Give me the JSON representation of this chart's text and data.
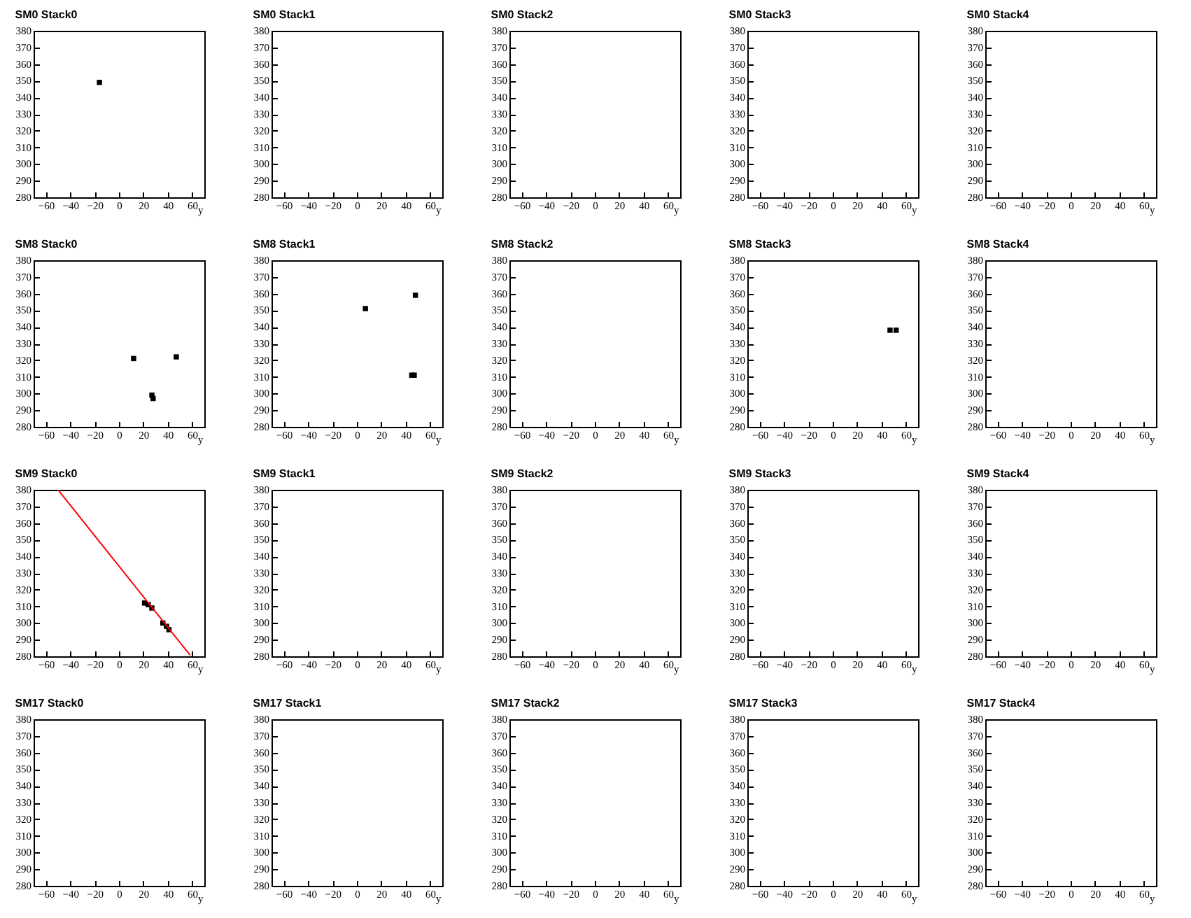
{
  "chart_data": [
    {
      "type": "scatter",
      "title": "SM0 Stack0",
      "xlabel": "y",
      "xlim": [
        -70,
        70
      ],
      "xticks": [
        -60,
        -40,
        -20,
        0,
        20,
        40,
        60
      ],
      "ylim": [
        280,
        380
      ],
      "yticks": [
        280,
        290,
        300,
        310,
        320,
        330,
        340,
        350,
        360,
        370,
        380
      ],
      "series": [
        {
          "color": "#000000",
          "marker": "square",
          "x": [
            -16
          ],
          "values": [
            349
          ]
        }
      ]
    },
    {
      "type": "scatter",
      "title": "SM0 Stack1",
      "xlabel": "y",
      "xlim": [
        -70,
        70
      ],
      "xticks": [
        -60,
        -40,
        -20,
        0,
        20,
        40,
        60
      ],
      "ylim": [
        280,
        380
      ],
      "yticks": [
        280,
        290,
        300,
        310,
        320,
        330,
        340,
        350,
        360,
        370,
        380
      ]
    },
    {
      "type": "scatter",
      "title": "SM0 Stack2",
      "xlabel": "y",
      "xlim": [
        -70,
        70
      ],
      "xticks": [
        -60,
        -40,
        -20,
        0,
        20,
        40,
        60
      ],
      "ylim": [
        280,
        380
      ],
      "yticks": [
        280,
        290,
        300,
        310,
        320,
        330,
        340,
        350,
        360,
        370,
        380
      ]
    },
    {
      "type": "scatter",
      "title": "SM0 Stack3",
      "xlabel": "y",
      "xlim": [
        -70,
        70
      ],
      "xticks": [
        -60,
        -40,
        -20,
        0,
        20,
        40,
        60
      ],
      "ylim": [
        280,
        380
      ],
      "yticks": [
        280,
        290,
        300,
        310,
        320,
        330,
        340,
        350,
        360,
        370,
        380
      ]
    },
    {
      "type": "scatter",
      "title": "SM0 Stack4",
      "xlabel": "y",
      "xlim": [
        -70,
        70
      ],
      "xticks": [
        -60,
        -40,
        -20,
        0,
        20,
        40,
        60
      ],
      "ylim": [
        280,
        380
      ],
      "yticks": [
        280,
        290,
        300,
        310,
        320,
        330,
        340,
        350,
        360,
        370,
        380
      ]
    },
    {
      "type": "scatter",
      "title": "SM8 Stack0",
      "xlabel": "y",
      "xlim": [
        -70,
        70
      ],
      "xticks": [
        -60,
        -40,
        -20,
        0,
        20,
        40,
        60
      ],
      "ylim": [
        280,
        380
      ],
      "yticks": [
        280,
        290,
        300,
        310,
        320,
        330,
        340,
        350,
        360,
        370,
        380
      ],
      "series": [
        {
          "color": "#000000",
          "marker": "square",
          "x": [
            12,
            47,
            27,
            28
          ],
          "values": [
            321,
            322,
            299,
            297
          ]
        }
      ]
    },
    {
      "type": "scatter",
      "title": "SM8 Stack1",
      "xlabel": "y",
      "xlim": [
        -70,
        70
      ],
      "xticks": [
        -60,
        -40,
        -20,
        0,
        20,
        40,
        60
      ],
      "ylim": [
        280,
        380
      ],
      "yticks": [
        280,
        290,
        300,
        310,
        320,
        330,
        340,
        350,
        360,
        370,
        380
      ],
      "series": [
        {
          "color": "#000000",
          "marker": "square",
          "x": [
            7,
            48,
            45,
            47
          ],
          "values": [
            351,
            359,
            311,
            311
          ]
        }
      ]
    },
    {
      "type": "scatter",
      "title": "SM8 Stack2",
      "xlabel": "y",
      "xlim": [
        -70,
        70
      ],
      "xticks": [
        -60,
        -40,
        -20,
        0,
        20,
        40,
        60
      ],
      "ylim": [
        280,
        380
      ],
      "yticks": [
        280,
        290,
        300,
        310,
        320,
        330,
        340,
        350,
        360,
        370,
        380
      ]
    },
    {
      "type": "scatter",
      "title": "SM8 Stack3",
      "xlabel": "y",
      "xlim": [
        -70,
        70
      ],
      "xticks": [
        -60,
        -40,
        -20,
        0,
        20,
        40,
        60
      ],
      "ylim": [
        280,
        380
      ],
      "yticks": [
        280,
        290,
        300,
        310,
        320,
        330,
        340,
        350,
        360,
        370,
        380
      ],
      "series": [
        {
          "color": "#000000",
          "marker": "square",
          "x": [
            47,
            52
          ],
          "values": [
            338,
            338
          ]
        }
      ]
    },
    {
      "type": "scatter",
      "title": "SM8 Stack4",
      "xlabel": "y",
      "xlim": [
        -70,
        70
      ],
      "xticks": [
        -60,
        -40,
        -20,
        0,
        20,
        40,
        60
      ],
      "ylim": [
        280,
        380
      ],
      "yticks": [
        280,
        290,
        300,
        310,
        320,
        330,
        340,
        350,
        360,
        370,
        380
      ]
    },
    {
      "type": "scatter",
      "title": "SM9 Stack0",
      "xlabel": "y",
      "xlim": [
        -70,
        70
      ],
      "xticks": [
        -60,
        -40,
        -20,
        0,
        20,
        40,
        60
      ],
      "ylim": [
        280,
        380
      ],
      "yticks": [
        280,
        290,
        300,
        310,
        320,
        330,
        340,
        350,
        360,
        370,
        380
      ],
      "series": [
        {
          "color": "#000000",
          "marker": "square",
          "x": [
            21,
            24,
            27,
            36,
            39,
            41
          ],
          "values": [
            312,
            311,
            309,
            300,
            298,
            296
          ]
        },
        {
          "type": "line",
          "color": "#ff0000",
          "x": [
            -50,
            58
          ],
          "values": [
            380,
            281
          ]
        }
      ]
    },
    {
      "type": "scatter",
      "title": "SM9 Stack1",
      "xlabel": "y",
      "xlim": [
        -70,
        70
      ],
      "xticks": [
        -60,
        -40,
        -20,
        0,
        20,
        40,
        60
      ],
      "ylim": [
        280,
        380
      ],
      "yticks": [
        280,
        290,
        300,
        310,
        320,
        330,
        340,
        350,
        360,
        370,
        380
      ]
    },
    {
      "type": "scatter",
      "title": "SM9 Stack2",
      "xlabel": "y",
      "xlim": [
        -70,
        70
      ],
      "xticks": [
        -60,
        -40,
        -20,
        0,
        20,
        40,
        60
      ],
      "ylim": [
        280,
        380
      ],
      "yticks": [
        280,
        290,
        300,
        310,
        320,
        330,
        340,
        350,
        360,
        370,
        380
      ]
    },
    {
      "type": "scatter",
      "title": "SM9 Stack3",
      "xlabel": "y",
      "xlim": [
        -70,
        70
      ],
      "xticks": [
        -60,
        -40,
        -20,
        0,
        20,
        40,
        60
      ],
      "ylim": [
        280,
        380
      ],
      "yticks": [
        280,
        290,
        300,
        310,
        320,
        330,
        340,
        350,
        360,
        370,
        380
      ]
    },
    {
      "type": "scatter",
      "title": "SM9 Stack4",
      "xlabel": "y",
      "xlim": [
        -70,
        70
      ],
      "xticks": [
        -60,
        -40,
        -20,
        0,
        20,
        40,
        60
      ],
      "ylim": [
        280,
        380
      ],
      "yticks": [
        280,
        290,
        300,
        310,
        320,
        330,
        340,
        350,
        360,
        370,
        380
      ]
    },
    {
      "type": "scatter",
      "title": "SM17 Stack0",
      "xlabel": "y",
      "xlim": [
        -70,
        70
      ],
      "xticks": [
        -60,
        -40,
        -20,
        0,
        20,
        40,
        60
      ],
      "ylim": [
        280,
        380
      ],
      "yticks": [
        280,
        290,
        300,
        310,
        320,
        330,
        340,
        350,
        360,
        370,
        380
      ]
    },
    {
      "type": "scatter",
      "title": "SM17 Stack1",
      "xlabel": "y",
      "xlim": [
        -70,
        70
      ],
      "xticks": [
        -60,
        -40,
        -20,
        0,
        20,
        40,
        60
      ],
      "ylim": [
        280,
        380
      ],
      "yticks": [
        280,
        290,
        300,
        310,
        320,
        330,
        340,
        350,
        360,
        370,
        380
      ]
    },
    {
      "type": "scatter",
      "title": "SM17 Stack2",
      "xlabel": "y",
      "xlim": [
        -70,
        70
      ],
      "xticks": [
        -60,
        -40,
        -20,
        0,
        20,
        40,
        60
      ],
      "ylim": [
        280,
        380
      ],
      "yticks": [
        280,
        290,
        300,
        310,
        320,
        330,
        340,
        350,
        360,
        370,
        380
      ]
    },
    {
      "type": "scatter",
      "title": "SM17 Stack3",
      "xlabel": "y",
      "xlim": [
        -70,
        70
      ],
      "xticks": [
        -60,
        -40,
        -20,
        0,
        20,
        40,
        60
      ],
      "ylim": [
        280,
        380
      ],
      "yticks": [
        280,
        290,
        300,
        310,
        320,
        330,
        340,
        350,
        360,
        370,
        380
      ]
    },
    {
      "type": "scatter",
      "title": "SM17 Stack4",
      "xlabel": "y",
      "xlim": [
        -70,
        70
      ],
      "xticks": [
        -60,
        -40,
        -20,
        0,
        20,
        40,
        60
      ],
      "ylim": [
        280,
        380
      ],
      "yticks": [
        280,
        290,
        300,
        310,
        320,
        330,
        340,
        350,
        360,
        370,
        380
      ]
    }
  ]
}
